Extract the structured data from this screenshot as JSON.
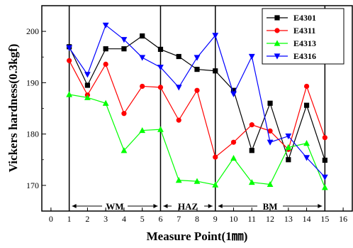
{
  "chart_data": {
    "type": "line",
    "title": "",
    "xlabel": "Measure Point(1㎜)",
    "ylabel": "Vickers hardness(0.3kgf)",
    "xlim": [
      -0.5,
      16.5
    ],
    "ylim": [
      165,
      205
    ],
    "x_ticks": [
      0,
      1,
      2,
      3,
      4,
      5,
      6,
      7,
      8,
      9,
      10,
      11,
      12,
      13,
      14,
      15,
      16
    ],
    "y_ticks": [
      170,
      180,
      190,
      200
    ],
    "grid": false,
    "legend_position": "top-right",
    "x": [
      1,
      2,
      3,
      4,
      5,
      6,
      7,
      8,
      9,
      10,
      11,
      12,
      13,
      14,
      15
    ],
    "series": [
      {
        "name": "E4301",
        "color": "#000000",
        "marker": "square",
        "values": [
          197,
          189.5,
          196.6,
          196.6,
          199.1,
          196.5,
          195.1,
          192.6,
          192.3,
          188.5,
          176.8,
          186,
          175,
          185.6,
          174.9
        ]
      },
      {
        "name": "E4311",
        "color": "#ff0000",
        "marker": "circle",
        "values": [
          194.3,
          187.6,
          193.6,
          184,
          189.3,
          189.1,
          182.7,
          188.5,
          175.5,
          178.4,
          181.8,
          180.6,
          177,
          189.3,
          179.3
        ]
      },
      {
        "name": "E4313",
        "color": "#00ff00",
        "marker": "triangle-up",
        "values": [
          187.7,
          187.1,
          186,
          176.8,
          180.7,
          180.9,
          171,
          170.8,
          170.1,
          175.3,
          170.6,
          170.2,
          177.4,
          178.2,
          169.6
        ]
      },
      {
        "name": "E4316",
        "color": "#0000ff",
        "marker": "triangle-down",
        "values": [
          196.8,
          191.6,
          201.2,
          198.4,
          194.9,
          193,
          189.1,
          194.9,
          199.2,
          187.8,
          195.1,
          178.4,
          179.6,
          175.4,
          171.6
        ]
      }
    ],
    "region_dividers": [
      1,
      6,
      9,
      15
    ],
    "regions": [
      {
        "label": "WM",
        "from": 1,
        "to": 6
      },
      {
        "label": "HAZ",
        "from": 6,
        "to": 9
      },
      {
        "label": "BM",
        "from": 9,
        "to": 15
      }
    ]
  }
}
